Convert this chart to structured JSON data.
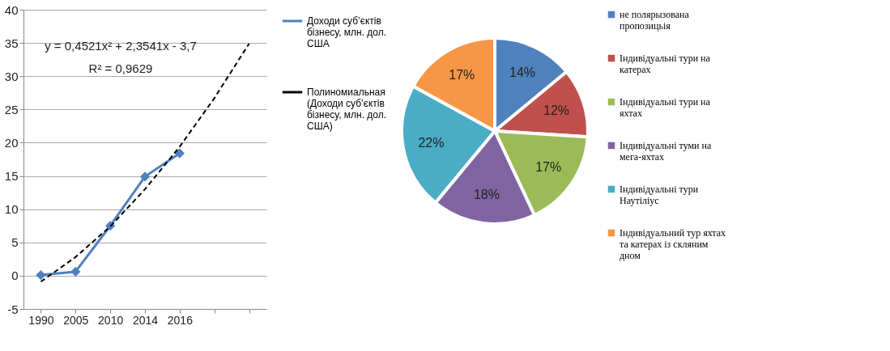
{
  "chart_data": [
    {
      "type": "line",
      "categories": [
        "1990",
        "2005",
        "2010",
        "2014",
        "2016",
        null,
        null
      ],
      "ylim": [
        -5,
        40
      ],
      "yticks": [
        -5,
        0,
        5,
        10,
        15,
        20,
        25,
        30,
        35,
        40
      ],
      "grid": "y",
      "legend": "right",
      "series": [
        {
          "name": "Доходи суб’єктів бізнесу, млн. дол. США",
          "color": "#4f81bd",
          "values": [
            0.1,
            0.6,
            7.5,
            14.9,
            18.4,
            null,
            null
          ],
          "marker": "diamond",
          "line_style": "solid"
        },
        {
          "name": "Полиномиальная (Доходи суб’єктів бізнесу, млн. дол. США)",
          "color": "#000000",
          "values": [
            -0.9,
            2.8,
            7.4,
            13.0,
            19.4,
            26.7,
            34.9
          ],
          "marker": "none",
          "line_style": "dashed"
        }
      ],
      "annotations": [
        "y = 0,4521x² + 2,3541x - 3,7",
        "R² = 0,9629"
      ]
    },
    {
      "type": "pie",
      "legend": "right",
      "categories": [
        "не полярызована пропозицьія",
        "Індивідуальні тури на катерах",
        "Індивідуальні тури на яхтах",
        "Індивідуальні туми на мега-яхтах",
        "Індивідуальні тури Наутіліус",
        "Індивідуальний тур яхтах та катерах із скляним дном"
      ],
      "values": [
        14,
        12,
        17,
        18,
        22,
        17
      ],
      "colors": [
        "#4f81bd",
        "#c0504d",
        "#9bbb59",
        "#8064a2",
        "#4bacc6",
        "#f79646"
      ],
      "value_labels": [
        "14%",
        "12%",
        "17%",
        "18%",
        "22%",
        "17%"
      ]
    }
  ]
}
